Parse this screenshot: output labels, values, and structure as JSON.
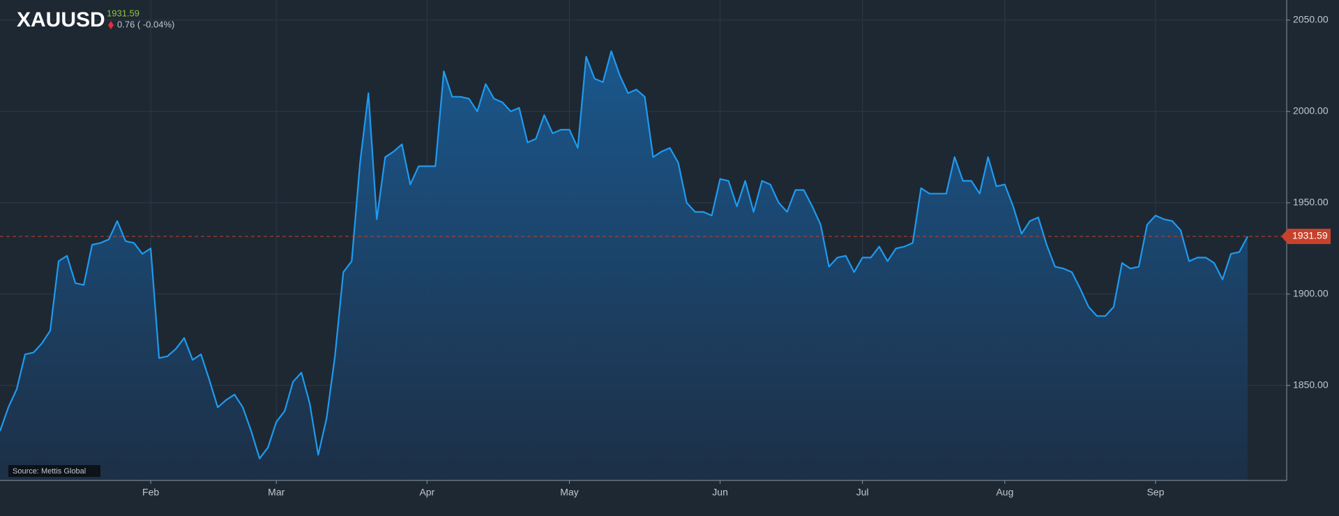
{
  "header": {
    "symbol": "XAUUSD",
    "change": "0.76 ( -0.04%)"
  },
  "source": "Source: Mettis Global",
  "chart_data": {
    "type": "area",
    "last_value": 1931.59,
    "color": "#1e9bf0",
    "grid": true,
    "ylim": [
      1798,
      2061
    ],
    "yticks": [
      {
        "value": 1850,
        "label": "1850.00"
      },
      {
        "value": 1900,
        "label": "1900.00"
      },
      {
        "value": 1950,
        "label": "1950.00"
      },
      {
        "value": 2000,
        "label": "2000.00"
      },
      {
        "value": 2050,
        "label": "2050.00"
      }
    ],
    "categories": [
      null,
      null,
      null,
      null,
      null,
      null,
      null,
      null,
      null,
      null,
      null,
      null,
      null,
      null,
      null,
      null,
      null,
      null,
      "Feb",
      null,
      null,
      null,
      null,
      null,
      null,
      null,
      null,
      null,
      null,
      null,
      null,
      null,
      null,
      "Mar",
      null,
      null,
      null,
      null,
      null,
      null,
      null,
      null,
      null,
      null,
      null,
      null,
      null,
      null,
      null,
      null,
      null,
      "Apr",
      null,
      null,
      null,
      null,
      null,
      null,
      null,
      null,
      null,
      null,
      null,
      null,
      null,
      null,
      null,
      null,
      "May",
      null,
      null,
      null,
      null,
      null,
      null,
      null,
      null,
      null,
      null,
      null,
      null,
      null,
      null,
      null,
      null,
      null,
      "Jun",
      null,
      null,
      null,
      null,
      null,
      null,
      null,
      null,
      null,
      null,
      null,
      null,
      null,
      null,
      null,
      null,
      "Jul",
      null,
      null,
      null,
      null,
      null,
      null,
      null,
      null,
      null,
      null,
      null,
      null,
      null,
      null,
      null,
      null,
      "Aug",
      null,
      null,
      null,
      null,
      null,
      null,
      null,
      null,
      null,
      null,
      null,
      null,
      null,
      null,
      null,
      null,
      null,
      "Sep",
      null,
      null,
      null,
      null,
      null,
      null,
      null,
      null,
      null,
      null,
      null
    ],
    "values": [
      1825,
      1838,
      1848,
      1867,
      1868,
      1873,
      1880,
      1918,
      1921,
      1906,
      1905,
      1927,
      1928,
      1930,
      1940,
      1929,
      1928,
      1922,
      1925,
      1865,
      1866,
      1870,
      1876,
      1864,
      1867,
      1853,
      1838,
      1842,
      1845,
      1838,
      1825,
      1810,
      1816,
      1830,
      1836,
      1852,
      1857,
      1840,
      1812,
      1832,
      1866,
      1912,
      1918,
      1972,
      2010,
      1941,
      1975,
      1978,
      1982,
      1960,
      1970,
      1970,
      1970,
      2022,
      2008,
      2008,
      2007,
      2000,
      2015,
      2007,
      2005,
      2000,
      2002,
      1983,
      1985,
      1998,
      1988,
      1990,
      1990,
      1980,
      2030,
      2018,
      2016,
      2033,
      2020,
      2010,
      2012,
      2008,
      1975,
      1978,
      1980,
      1972,
      1950,
      1945,
      1945,
      1943,
      1963,
      1962,
      1948,
      1962,
      1945,
      1962,
      1960,
      1950,
      1945,
      1957,
      1957,
      1948,
      1938,
      1915,
      1920,
      1921,
      1912,
      1920,
      1920,
      1926,
      1918,
      1925,
      1926,
      1928,
      1958,
      1955,
      1955,
      1955,
      1975,
      1962,
      1962,
      1955,
      1975,
      1959,
      1960,
      1948,
      1933,
      1940,
      1942,
      1927,
      1915,
      1914,
      1912,
      1903,
      1893,
      1888,
      1888,
      1893,
      1917,
      1914,
      1915,
      1938,
      1943,
      1941,
      1940,
      1935,
      1918,
      1920,
      1920,
      1917,
      1908,
      1922,
      1923,
      1931.59
    ]
  }
}
